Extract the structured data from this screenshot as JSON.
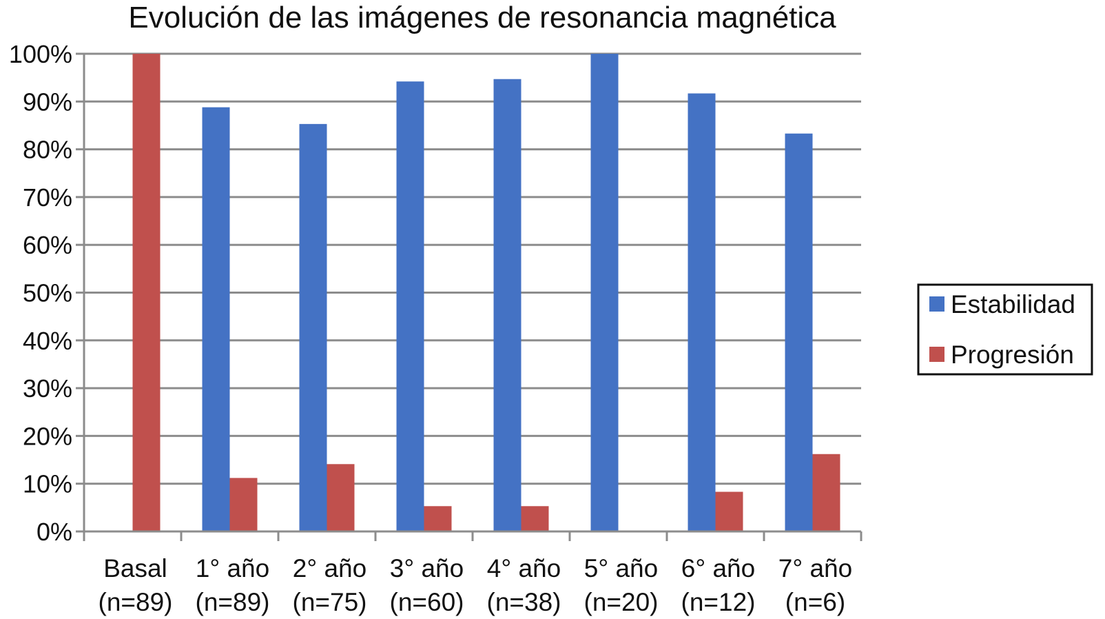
{
  "chart_data": {
    "type": "bar",
    "title": "Evolución de las imágenes de resonancia magnética",
    "xlabel": "",
    "ylabel": "",
    "ylim": [
      0,
      100
    ],
    "y_ticks": [
      "0%",
      "10%",
      "20%",
      "30%",
      "40%",
      "50%",
      "60%",
      "70%",
      "80%",
      "90%",
      "100%"
    ],
    "categories": [
      {
        "line1": "Basal",
        "line2": "(n=89)"
      },
      {
        "line1": "1° año",
        "line2": "(n=89)"
      },
      {
        "line1": "2° año",
        "line2": "(n=75)"
      },
      {
        "line1": "3° año",
        "line2": "(n=60)"
      },
      {
        "line1": "4° año",
        "line2": "(n=38)"
      },
      {
        "line1": "5° año",
        "line2": "(n=20)"
      },
      {
        "line1": "6° año",
        "line2": "(n=12)"
      },
      {
        "line1": "7° año",
        "line2": "(n=6)"
      }
    ],
    "series": [
      {
        "name": "Estabilidad",
        "color": "#4472C4",
        "values": [
          0,
          88.8,
          85.3,
          94.2,
          94.7,
          100,
          91.7,
          83.3
        ]
      },
      {
        "name": "Progresión",
        "color": "#C0504D",
        "values": [
          100,
          11.2,
          14.1,
          5.3,
          5.3,
          0,
          8.3,
          16.2
        ]
      }
    ],
    "grid": true,
    "legend_position": "right"
  }
}
